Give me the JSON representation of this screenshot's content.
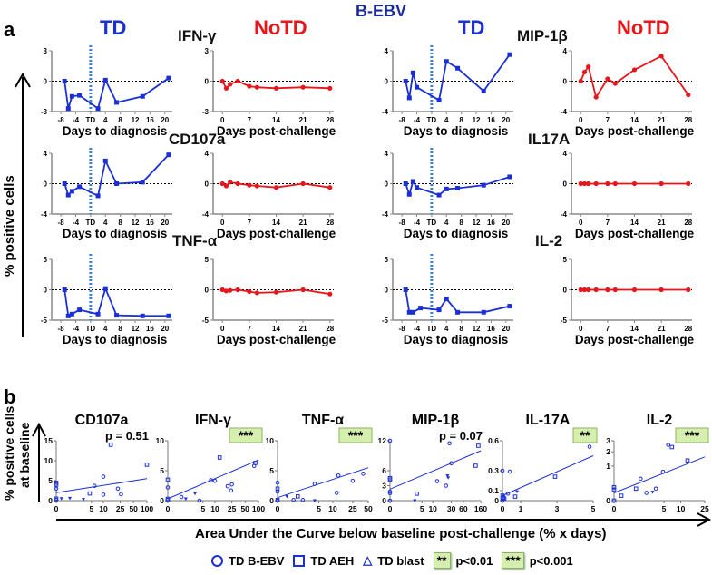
{
  "figure_title": "B-EBV",
  "panel_a": {
    "label": "a",
    "ylabel": "% positive cells",
    "group_headers": [
      "TD",
      "NoTD",
      "TD",
      "NoTD"
    ],
    "markers": [
      "IFN-γ",
      "MIP-1β",
      "CD107a",
      "IL17A",
      "TNF-α",
      "IL-2"
    ],
    "xlabel_td": "Days to diagnosis",
    "xlabel_notd": "Days post-challenge"
  },
  "panel_b": {
    "label": "b",
    "ylabel_line1": "% positive cells",
    "ylabel_line2": "at baseline",
    "xlabel": "Area Under the Curve below baseline post-challenge (% x days)",
    "legend": {
      "bebv": "TD B-EBV",
      "aeh": "TD AEH",
      "blast": "TD blast",
      "badge2": "**",
      "p2": "p<0.01",
      "badge3": "***",
      "p3": "p<0.001"
    }
  },
  "colors": {
    "td": "#1a2fd6",
    "notd": "#e8151b",
    "title": "#1a2a9a",
    "badge": "#d6efb0"
  },
  "chart_data": [
    {
      "type": "line",
      "panel": "a",
      "marker": "IFN-γ",
      "group": "TD",
      "ylim": [
        -3,
        3
      ],
      "yticks": [
        3,
        0,
        -3
      ],
      "xlim": [
        -9,
        22
      ],
      "xticks": [
        -8,
        -4,
        "TD",
        4,
        8,
        12,
        16,
        20
      ],
      "x": [
        -7,
        -6,
        -5,
        -3,
        2,
        4,
        7,
        14,
        21
      ],
      "y": [
        0,
        -2.7,
        -1.5,
        -1.4,
        -2.7,
        0.1,
        -2.1,
        -1.5,
        0.3
      ]
    },
    {
      "type": "line",
      "panel": "a",
      "marker": "IFN-γ",
      "group": "NoTD",
      "ylim": [
        -3,
        3
      ],
      "yticks": [
        3,
        0,
        -3
      ],
      "xlim": [
        -1,
        29
      ],
      "xticks": [
        0,
        7,
        14,
        21,
        28
      ],
      "x": [
        0,
        1,
        2,
        4,
        7,
        9,
        14,
        21,
        28
      ],
      "y": [
        0,
        -0.7,
        -0.3,
        0,
        -0.5,
        -0.6,
        -0.7,
        -0.6,
        -0.7
      ]
    },
    {
      "type": "line",
      "panel": "a",
      "marker": "MIP-1β",
      "group": "TD",
      "ylim": [
        -4,
        4
      ],
      "yticks": [
        4,
        0,
        -4
      ],
      "xlim": [
        -9,
        22
      ],
      "xticks": [
        -8,
        -4,
        "TD",
        4,
        8,
        12,
        16,
        20
      ],
      "x": [
        -7,
        -6,
        -5,
        -4,
        2,
        4,
        7,
        14,
        21
      ],
      "y": [
        0,
        -2.2,
        1.1,
        -0.8,
        -2.5,
        2.6,
        1.7,
        -1.3,
        3.5
      ]
    },
    {
      "type": "line",
      "panel": "a",
      "marker": "MIP-1β",
      "group": "NoTD",
      "ylim": [
        -4,
        4
      ],
      "yticks": [
        4,
        0,
        -4
      ],
      "xlim": [
        -1,
        29
      ],
      "xticks": [
        0,
        7,
        14,
        21,
        28
      ],
      "x": [
        0,
        1,
        2,
        4,
        7,
        9,
        14,
        21,
        28
      ],
      "y": [
        0,
        1.2,
        1.9,
        -2.1,
        0.3,
        -0.3,
        1.5,
        3.3,
        -1.8
      ]
    },
    {
      "type": "line",
      "panel": "a",
      "marker": "CD107a",
      "group": "TD",
      "ylim": [
        -4,
        4
      ],
      "yticks": [
        4,
        0,
        -4
      ],
      "xlim": [
        -9,
        22
      ],
      "xticks": [
        -8,
        -4,
        "TD",
        4,
        8,
        12,
        16,
        20
      ],
      "x": [
        -7,
        -6,
        -5,
        -3,
        2,
        4,
        7,
        14,
        21
      ],
      "y": [
        0,
        -1.5,
        -1,
        -0.4,
        -1.6,
        3,
        0,
        0.2,
        3.8
      ]
    },
    {
      "type": "line",
      "panel": "a",
      "marker": "CD107a",
      "group": "NoTD",
      "ylim": [
        -4,
        4
      ],
      "yticks": [
        4,
        0,
        -4
      ],
      "xlim": [
        -1,
        29
      ],
      "xticks": [
        0,
        7,
        14,
        21,
        28
      ],
      "x": [
        0,
        1,
        2,
        4,
        7,
        9,
        14,
        21,
        28
      ],
      "y": [
        0,
        -0.3,
        0.2,
        0,
        -0.2,
        -0.3,
        -0.5,
        0,
        -0.5
      ]
    },
    {
      "type": "line",
      "panel": "a",
      "marker": "IL17A",
      "group": "TD",
      "ylim": [
        -4,
        4
      ],
      "yticks": [
        4,
        0,
        -4
      ],
      "xlim": [
        -9,
        22
      ],
      "xticks": [
        -8,
        -4,
        "TD",
        4,
        8,
        12,
        16,
        20
      ],
      "x": [
        -7,
        -6,
        -5,
        -4,
        2,
        4,
        7,
        14,
        21
      ],
      "y": [
        0,
        -1.4,
        0.3,
        -0.5,
        -1.5,
        -0.7,
        -0.6,
        -0.2,
        0.9
      ]
    },
    {
      "type": "line",
      "panel": "a",
      "marker": "IL17A",
      "group": "NoTD",
      "ylim": [
        -4,
        4
      ],
      "yticks": [
        4,
        0,
        -4
      ],
      "xlim": [
        -1,
        29
      ],
      "xticks": [
        0,
        7,
        14,
        21,
        28
      ],
      "x": [
        0,
        1,
        2,
        4,
        7,
        9,
        14,
        21,
        28
      ],
      "y": [
        0,
        0,
        0,
        0,
        0,
        0,
        0,
        0,
        0
      ]
    },
    {
      "type": "line",
      "panel": "a",
      "marker": "TNF-α",
      "group": "TD",
      "ylim": [
        -5,
        5
      ],
      "yticks": [
        5,
        0,
        -5
      ],
      "xlim": [
        -9,
        22
      ],
      "xticks": [
        -8,
        -4,
        "TD",
        4,
        8,
        12,
        16,
        20
      ],
      "x": [
        -7,
        -6,
        -5,
        -3,
        2,
        4,
        7,
        14,
        21
      ],
      "y": [
        0,
        -4.3,
        -4,
        -3.3,
        -4,
        0.2,
        -4.2,
        -4.3,
        -4.3
      ]
    },
    {
      "type": "line",
      "panel": "a",
      "marker": "TNF-α",
      "group": "NoTD",
      "ylim": [
        -5,
        5
      ],
      "yticks": [
        5,
        0,
        -5
      ],
      "xlim": [
        -1,
        29
      ],
      "xticks": [
        0,
        7,
        14,
        21,
        28
      ],
      "x": [
        0,
        1,
        2,
        4,
        7,
        9,
        14,
        21,
        28
      ],
      "y": [
        0,
        -0.2,
        -0.1,
        0,
        -0.3,
        -0.5,
        -0.4,
        0,
        -0.7
      ]
    },
    {
      "type": "line",
      "panel": "a",
      "marker": "IL-2",
      "group": "TD",
      "ylim": [
        -5,
        5
      ],
      "yticks": [
        5,
        0,
        -5
      ],
      "xlim": [
        -9,
        22
      ],
      "xticks": [
        -8,
        -4,
        "TD",
        4,
        8,
        12,
        16,
        20
      ],
      "x": [
        -7,
        -6,
        -5,
        -3,
        2,
        4,
        7,
        14,
        21
      ],
      "y": [
        0,
        -3.7,
        -3.7,
        -3,
        -3.3,
        -1.5,
        -3.7,
        -3.7,
        -2.7
      ]
    },
    {
      "type": "line",
      "panel": "a",
      "marker": "IL-2",
      "group": "NoTD",
      "ylim": [
        -5,
        5
      ],
      "yticks": [
        5,
        0,
        -5
      ],
      "xlim": [
        -1,
        29
      ],
      "xticks": [
        0,
        7,
        14,
        21,
        28
      ],
      "x": [
        0,
        1,
        2,
        4,
        7,
        9,
        14,
        21,
        28
      ],
      "y": [
        0,
        0,
        0,
        0,
        0,
        0,
        0,
        0,
        0
      ]
    },
    {
      "type": "scatter",
      "panel": "b",
      "title": "CD107a",
      "stat": "p = 0.51",
      "xscale": "log1p",
      "yscale": "linear",
      "xlim": [
        0,
        100
      ],
      "ylim": [
        0,
        15
      ],
      "xticks": [
        0,
        5,
        10,
        25,
        50,
        100
      ],
      "yticks": [
        0,
        5,
        10,
        15
      ],
      "points": [
        [
          0,
          4.5,
          "s"
        ],
        [
          0,
          4,
          "s"
        ],
        [
          0,
          3,
          "o"
        ],
        [
          0,
          0.5,
          "s"
        ],
        [
          0,
          0.2,
          "o"
        ],
        [
          0.3,
          0.5,
          "t"
        ],
        [
          1,
          0.6,
          "t"
        ],
        [
          3,
          0.3,
          "t"
        ],
        [
          6,
          3.7,
          "o"
        ],
        [
          4.5,
          1.8,
          "s"
        ],
        [
          10,
          6,
          "o"
        ],
        [
          10,
          1.5,
          "o"
        ],
        [
          15,
          14,
          "s"
        ],
        [
          22,
          3,
          "o"
        ],
        [
          26,
          1.6,
          "o"
        ],
        [
          100,
          9,
          "s"
        ]
      ],
      "fit": [
        [
          0,
          2
        ],
        [
          100,
          5.5
        ]
      ]
    },
    {
      "type": "scatter",
      "panel": "b",
      "title": "IFN-γ",
      "stat": "***",
      "xscale": "log1p",
      "yscale": "linear",
      "xlim": [
        0,
        100
      ],
      "ylim": [
        0,
        10
      ],
      "xticks": [
        0,
        5,
        10,
        25,
        50,
        100
      ],
      "yticks": [
        0,
        5,
        10
      ],
      "points": [
        [
          0,
          3.5,
          "s"
        ],
        [
          0,
          2.2,
          "o"
        ],
        [
          0,
          0.3,
          "s"
        ],
        [
          0,
          0.1,
          "s"
        ],
        [
          1,
          0.6,
          "o"
        ],
        [
          1.5,
          0.3,
          "t"
        ],
        [
          3,
          1.2,
          "t"
        ],
        [
          4,
          0,
          "o"
        ],
        [
          8,
          3.4,
          "o"
        ],
        [
          10,
          3.3,
          "o"
        ],
        [
          13,
          7.2,
          "s"
        ],
        [
          20,
          2.4,
          "o"
        ],
        [
          24,
          1.7,
          "o"
        ],
        [
          25,
          2.7,
          "o"
        ],
        [
          80,
          5.8,
          "o"
        ],
        [
          85,
          6.3,
          "s"
        ]
      ],
      "fit": [
        [
          0,
          0.3
        ],
        [
          100,
          6.8
        ]
      ]
    },
    {
      "type": "scatter",
      "panel": "b",
      "title": "TNF-α",
      "stat": "***",
      "xscale": "log1p",
      "yscale": "linear",
      "xlim": [
        0,
        50
      ],
      "ylim": [
        0,
        10
      ],
      "xticks": [
        0,
        5,
        10,
        25,
        50
      ],
      "yticks": [
        0,
        5,
        10
      ],
      "points": [
        [
          0,
          3,
          "o"
        ],
        [
          0,
          2,
          "s"
        ],
        [
          0,
          1.5,
          "o"
        ],
        [
          0,
          0.1,
          "s"
        ],
        [
          0,
          0,
          "o"
        ],
        [
          0.5,
          0.7,
          "t"
        ],
        [
          1,
          0.1,
          "o"
        ],
        [
          1.4,
          0.7,
          "s"
        ],
        [
          2,
          0.1,
          "o"
        ],
        [
          4,
          2.8,
          "o"
        ],
        [
          4,
          0,
          "t"
        ],
        [
          13,
          4.2,
          "o"
        ],
        [
          12,
          1.3,
          "o"
        ],
        [
          25,
          3.3,
          "o"
        ],
        [
          40,
          4.5,
          "o"
        ]
      ],
      "fit": [
        [
          0,
          0.5
        ],
        [
          50,
          5.5
        ]
      ]
    },
    {
      "type": "scatter",
      "panel": "b",
      "title": "MIP-1β",
      "stat": "p = 0.07",
      "xscale": "log1p",
      "yscale": "linear",
      "xlim": [
        0,
        160
      ],
      "ylim": [
        0,
        12
      ],
      "xticks": [
        0,
        5,
        10,
        30,
        60,
        160
      ],
      "yticks": [
        0,
        3,
        6,
        12
      ],
      "points": [
        [
          0,
          12,
          "o"
        ],
        [
          0,
          4.5,
          "s"
        ],
        [
          0,
          4.2,
          "s"
        ],
        [
          0,
          1.8,
          "o"
        ],
        [
          0,
          1.5,
          "o"
        ],
        [
          0,
          0,
          "o"
        ],
        [
          3,
          0,
          "t"
        ],
        [
          3.5,
          1.4,
          "s"
        ],
        [
          13,
          3.9,
          "o"
        ],
        [
          22,
          3,
          "o"
        ],
        [
          24,
          5,
          "t"
        ],
        [
          25,
          4.6,
          "t"
        ],
        [
          27,
          11.5,
          "o"
        ],
        [
          30,
          7.5,
          "o"
        ],
        [
          120,
          7,
          "s"
        ],
        [
          140,
          11,
          "s"
        ]
      ],
      "fit": [
        [
          0,
          2.3
        ],
        [
          160,
          10
        ]
      ]
    },
    {
      "type": "scatter",
      "panel": "b",
      "title": "IL-17A",
      "stat": "**",
      "xscale": "linear",
      "yscale": "linear",
      "xlim": [
        0,
        5
      ],
      "ylim": [
        0,
        0.6
      ],
      "xticks": [
        0,
        1,
        3,
        5
      ],
      "yticks": [
        0,
        0.1,
        0.3,
        0.6
      ],
      "points": [
        [
          0,
          0.3,
          "o"
        ],
        [
          0,
          0.05,
          "s"
        ],
        [
          0,
          0.02,
          "s"
        ],
        [
          0,
          0,
          "o"
        ],
        [
          0.05,
          0.03,
          "s"
        ],
        [
          0.1,
          0.02,
          "s"
        ],
        [
          0.4,
          0.29,
          "o"
        ],
        [
          0.3,
          0.07,
          "o"
        ],
        [
          0.7,
          0.04,
          "s"
        ],
        [
          0.8,
          0.09,
          "t"
        ],
        [
          2.9,
          0.24,
          "s"
        ],
        [
          4.8,
          0.54,
          "o"
        ]
      ],
      "fit": [
        [
          0,
          0.05
        ],
        [
          5,
          0.45
        ]
      ]
    },
    {
      "type": "scatter",
      "panel": "b",
      "title": "IL-2",
      "stat": "***",
      "xscale": "log1p",
      "yscale": "sqrt",
      "xlim": [
        0,
        25
      ],
      "ylim": [
        0,
        3
      ],
      "xticks": [
        0,
        5,
        10,
        25
      ],
      "yticks": [
        0,
        1,
        2,
        3
      ],
      "points": [
        [
          0,
          0.15,
          "s"
        ],
        [
          0,
          0.1,
          "s"
        ],
        [
          0,
          0,
          "s"
        ],
        [
          0.3,
          0.02,
          "s"
        ],
        [
          1.2,
          0.12,
          "s"
        ],
        [
          1.6,
          0.4,
          "o"
        ],
        [
          2.2,
          0.05,
          "o"
        ],
        [
          3,
          0.06,
          "t"
        ],
        [
          3.5,
          0.12,
          "o"
        ],
        [
          4.8,
          0.7,
          "o"
        ],
        [
          6,
          2.6,
          "o"
        ],
        [
          7,
          2.4,
          "s"
        ],
        [
          13,
          1.35,
          "s"
        ]
      ],
      "fit": [
        [
          0,
          0.05
        ],
        [
          25,
          1.6
        ]
      ]
    }
  ]
}
